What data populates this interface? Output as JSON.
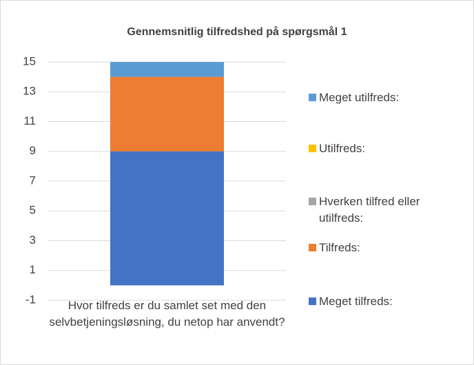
{
  "chart_data": {
    "type": "stacked_bar",
    "title": "Gennemsnitlig tilfredshed på spørgsmål 1",
    "categories": [
      "Hvor tilfreds er du samlet set med den selvbetjeningsløsning, du netop har anvendt?"
    ],
    "series": [
      {
        "name": "Meget tilfreds:",
        "color": "#4472c4",
        "values": [
          9
        ]
      },
      {
        "name": "Tilfreds:",
        "color": "#ed7d31",
        "values": [
          5
        ]
      },
      {
        "name": "Hverken tilfred eller utilfreds:",
        "color": "#a5a5a5",
        "values": [
          0
        ]
      },
      {
        "name": "Utilfreds:",
        "color": "#ffc000",
        "values": [
          0
        ]
      },
      {
        "name": "Meget utilfreds:",
        "color": "#5b9bd5",
        "values": [
          1
        ]
      }
    ],
    "ylim": [
      -1,
      15
    ],
    "yticks": [
      -1,
      1,
      3,
      5,
      7,
      9,
      11,
      13,
      15
    ],
    "grid": true,
    "legend": "right"
  }
}
